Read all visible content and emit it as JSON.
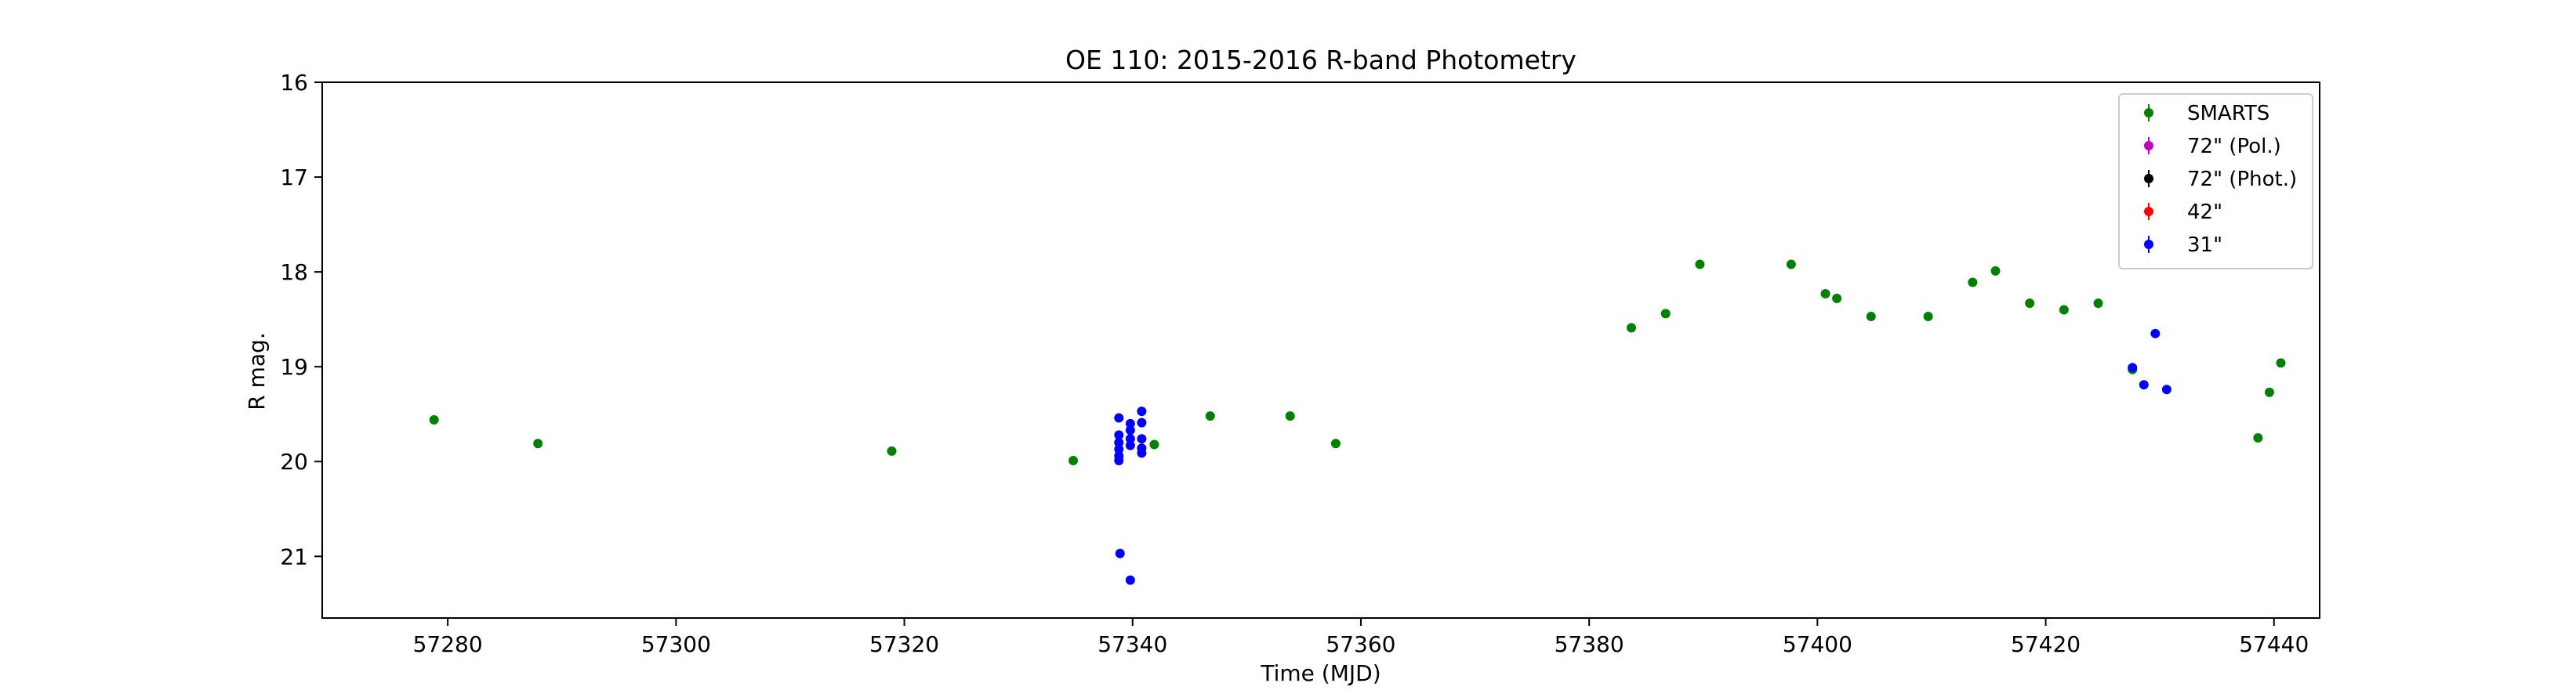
{
  "chart_data": {
    "type": "scatter",
    "title": "OE 110: 2015-2016 R-band Photometry",
    "xlabel": "Time (MJD)",
    "ylabel": "R mag.",
    "xlim": [
      57269,
      57444
    ],
    "ylim": [
      21.65,
      16
    ],
    "y_inverted": true,
    "xticks": [
      57280,
      57300,
      57320,
      57340,
      57360,
      57380,
      57400,
      57420,
      57440
    ],
    "yticks": [
      16,
      17,
      18,
      19,
      20,
      21
    ],
    "legend_position": "upper-right",
    "grid": false,
    "series": [
      {
        "name": "SMARTS",
        "color": "#008000",
        "points": [
          [
            57278.8,
            19.56
          ],
          [
            57287.9,
            19.81
          ],
          [
            57318.9,
            19.89
          ],
          [
            57334.8,
            19.99
          ],
          [
            57341.9,
            19.82
          ],
          [
            57346.8,
            19.52
          ],
          [
            57353.8,
            19.52
          ],
          [
            57357.8,
            19.81
          ],
          [
            57383.7,
            18.59
          ],
          [
            57386.7,
            18.44
          ],
          [
            57389.7,
            17.92
          ],
          [
            57397.7,
            17.92
          ],
          [
            57400.7,
            18.23
          ],
          [
            57401.7,
            18.28
          ],
          [
            57404.7,
            18.47
          ],
          [
            57409.7,
            18.47
          ],
          [
            57413.6,
            18.11
          ],
          [
            57415.6,
            17.99
          ],
          [
            57418.6,
            18.33
          ],
          [
            57421.6,
            18.4
          ],
          [
            57424.6,
            18.33
          ],
          [
            57427.6,
            19.03
          ],
          [
            57438.6,
            19.75
          ],
          [
            57439.6,
            19.27
          ],
          [
            57440.6,
            18.96
          ]
        ]
      },
      {
        "name": "72\" (Pol.)",
        "color": "#bf00bf",
        "points": []
      },
      {
        "name": "72\" (Phot.)",
        "color": "#000000",
        "points": []
      },
      {
        "name": "42\"",
        "color": "#ff0000",
        "points": []
      },
      {
        "name": "31\"",
        "color": "#0000ff",
        "points": [
          [
            57338.8,
            19.54
          ],
          [
            57338.8,
            19.72
          ],
          [
            57338.8,
            19.8
          ],
          [
            57338.8,
            19.87
          ],
          [
            57338.8,
            19.94
          ],
          [
            57338.8,
            19.99
          ],
          [
            57338.9,
            20.97
          ],
          [
            57339.8,
            19.6
          ],
          [
            57339.8,
            19.67
          ],
          [
            57339.8,
            19.76
          ],
          [
            57339.8,
            19.83
          ],
          [
            57339.8,
            21.25
          ],
          [
            57340.8,
            19.47
          ],
          [
            57340.8,
            19.59
          ],
          [
            57340.8,
            19.76
          ],
          [
            57340.8,
            19.86
          ],
          [
            57340.8,
            19.91
          ],
          [
            57427.6,
            19.01
          ],
          [
            57428.6,
            19.19
          ],
          [
            57429.6,
            18.65
          ],
          [
            57430.6,
            19.24
          ]
        ]
      }
    ]
  }
}
